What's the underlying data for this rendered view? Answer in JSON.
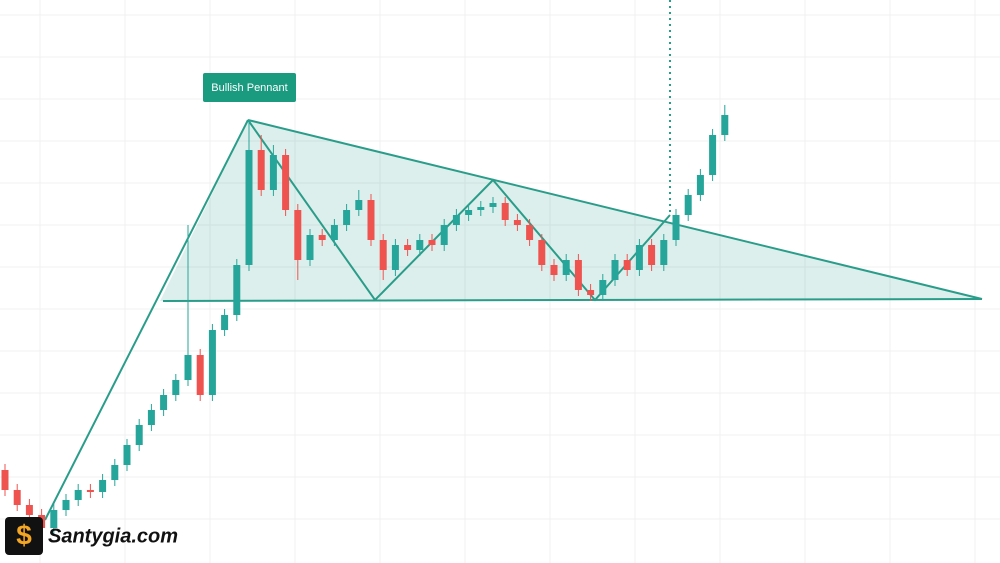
{
  "chart_data": {
    "type": "candlestick",
    "annotation": "Bullish Pennant",
    "watermark": "Santygia.com",
    "ylim": [
      0,
      563
    ],
    "up_color": "#26a69a",
    "down_color": "#ef5350",
    "pattern_color": "#2a9d8a",
    "open": [
      93,
      73,
      58,
      48,
      35,
      53,
      63,
      73,
      71,
      83,
      98,
      118,
      138,
      153,
      168,
      183,
      208,
      168,
      233,
      248,
      298,
      413,
      373,
      408,
      353,
      303,
      328,
      323,
      338,
      353,
      363,
      323,
      293,
      318,
      313,
      323,
      318,
      338,
      348,
      353,
      356,
      360,
      343,
      338,
      323,
      298,
      288,
      303,
      273,
      268,
      283,
      303,
      293,
      318,
      298,
      323,
      348,
      368,
      388,
      428
    ],
    "high": [
      99,
      79,
      64,
      54,
      59,
      69,
      79,
      79,
      89,
      104,
      124,
      144,
      159,
      174,
      189,
      338,
      214,
      239,
      254,
      304,
      443,
      428,
      418,
      414,
      359,
      334,
      334,
      344,
      359,
      373,
      369,
      329,
      324,
      324,
      329,
      329,
      344,
      354,
      359,
      362,
      366,
      366,
      349,
      344,
      329,
      304,
      309,
      309,
      279,
      289,
      309,
      309,
      324,
      324,
      329,
      354,
      374,
      394,
      434,
      458
    ],
    "low": [
      67,
      52,
      42,
      29,
      29,
      47,
      57,
      65,
      65,
      77,
      92,
      112,
      132,
      147,
      162,
      177,
      162,
      162,
      227,
      242,
      292,
      367,
      367,
      347,
      283,
      297,
      317,
      317,
      332,
      347,
      317,
      283,
      287,
      307,
      307,
      312,
      312,
      332,
      342,
      347,
      350,
      337,
      332,
      317,
      292,
      282,
      282,
      267,
      262,
      262,
      277,
      287,
      287,
      292,
      292,
      317,
      342,
      362,
      382,
      422
    ],
    "close": [
      73,
      58,
      48,
      35,
      53,
      63,
      73,
      71,
      83,
      98,
      118,
      138,
      153,
      168,
      183,
      208,
      168,
      233,
      248,
      298,
      413,
      373,
      408,
      353,
      303,
      328,
      323,
      338,
      353,
      363,
      323,
      293,
      318,
      313,
      323,
      318,
      338,
      348,
      353,
      356,
      360,
      343,
      338,
      323,
      298,
      288,
      303,
      273,
      268,
      283,
      303,
      293,
      318,
      298,
      323,
      348,
      368,
      388,
      428,
      448
    ]
  }
}
